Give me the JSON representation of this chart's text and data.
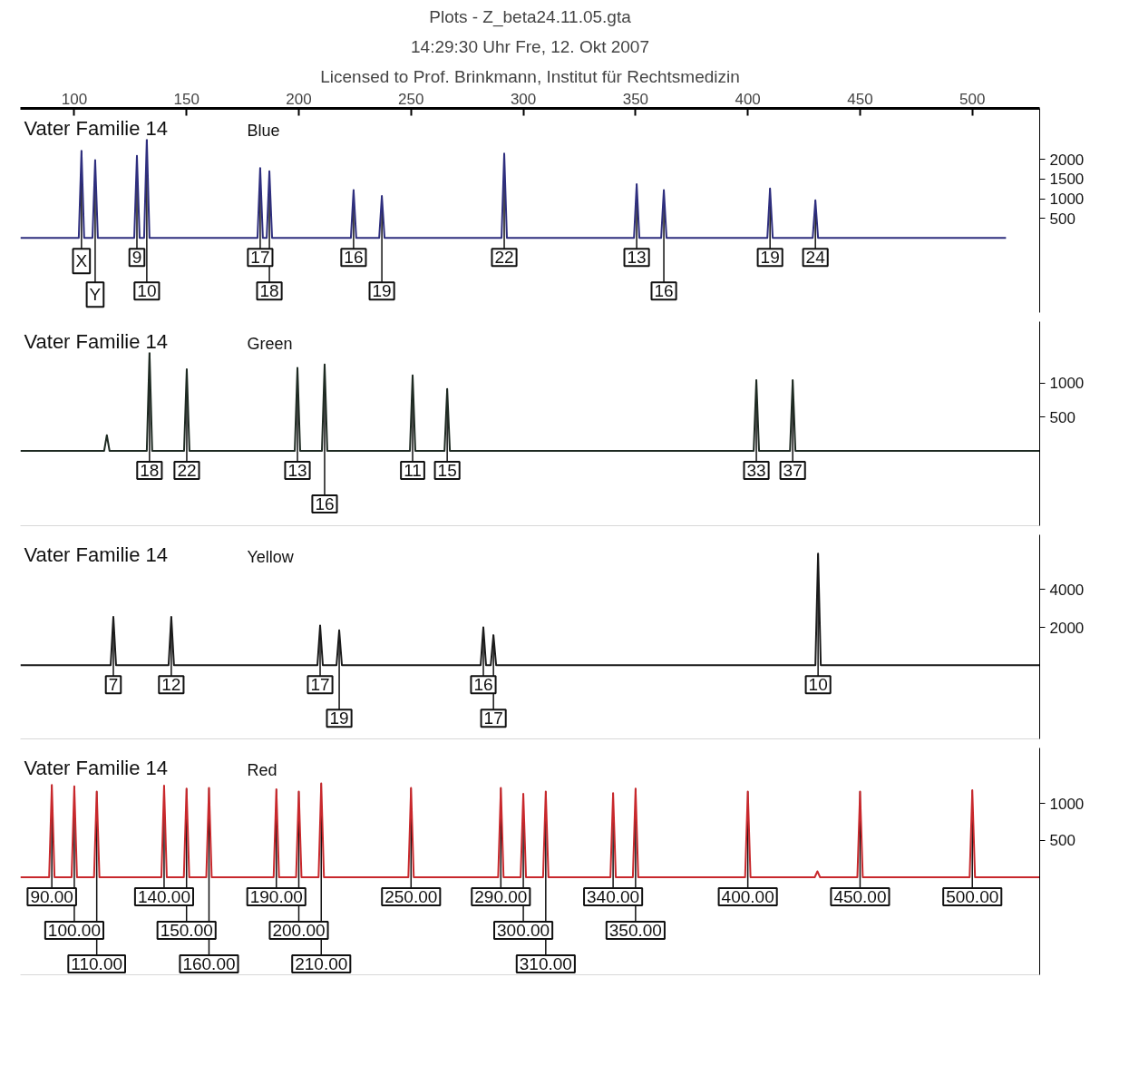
{
  "chart_data": [
    {
      "type": "line",
      "title": "Vater Familie 14",
      "subtitle": "Blue",
      "xlim": [
        76,
        530
      ],
      "xticks": [
        100,
        150,
        200,
        250,
        300,
        350,
        400,
        450,
        500
      ],
      "ylim": [
        -1900,
        3300
      ],
      "yticks": [
        500,
        1000,
        1500,
        2000
      ],
      "grid": false,
      "marker": "none",
      "line_style": "solid",
      "series": [
        {
          "color": "#2e2e7e",
          "x": [
            76,
            102,
            103.2,
            104.4,
            108.1,
            109.3,
            110.5,
            126.7,
            127.9,
            129.1,
            131.1,
            132.3,
            133.5,
            181.6,
            182.8,
            184,
            185.7,
            186.9,
            188.1,
            223.2,
            224.4,
            225.6,
            235.8,
            237,
            238.2,
            290.3,
            291.5,
            292.7,
            349.3,
            350.5,
            351.7,
            361.4,
            362.6,
            363.8,
            408.7,
            409.9,
            411.1,
            428.9,
            430.1,
            431.3,
            515
          ],
          "values": [
            0,
            0,
            2220,
            0,
            0,
            1980,
            0,
            0,
            2090,
            0,
            0,
            2520,
            0,
            0,
            1780,
            0,
            0,
            1700,
            0,
            0,
            1220,
            0,
            0,
            1070,
            0,
            0,
            2150,
            0,
            0,
            1370,
            0,
            0,
            1220,
            0,
            0,
            1260,
            0,
            0,
            960,
            0,
            0
          ]
        }
      ],
      "annotations": [
        "Plots - Z_beta24.11.05.gta",
        "14:29:30 Uhr Fre, 12. Okt 2007",
        "Licensed to Prof. Brinkmann, Institut für Rechtsmedizin",
        {
          "text": "X",
          "x": 103.2,
          "y": 2220
        },
        {
          "text": "Y",
          "x": 109.3,
          "y": 1980
        },
        {
          "text": "9",
          "x": 127.9,
          "y": 2090
        },
        {
          "text": "10",
          "x": 132.3,
          "y": 2520
        },
        {
          "text": "17",
          "x": 182.8,
          "y": 1780
        },
        {
          "text": "18",
          "x": 186.9,
          "y": 1700
        },
        {
          "text": "16",
          "x": 224.4,
          "y": 1220
        },
        {
          "text": "19",
          "x": 237,
          "y": 1070
        },
        {
          "text": "22",
          "x": 291.5,
          "y": 2150
        },
        {
          "text": "13",
          "x": 350.5,
          "y": 1370
        },
        {
          "text": "16",
          "x": 362.6,
          "y": 1220
        },
        {
          "text": "19",
          "x": 409.9,
          "y": 1260
        },
        {
          "text": "24",
          "x": 430.1,
          "y": 960
        }
      ]
    },
    {
      "type": "line",
      "title": "Vater Familie 14",
      "subtitle": "Green",
      "xlim": [
        76,
        530
      ],
      "ylim": [
        -1100,
        1900
      ],
      "yticks": [
        500,
        1000
      ],
      "tick_labels": "y",
      "grid": false,
      "marker": "none",
      "line_style": "solid",
      "series": [
        {
          "color": "#1e2a22",
          "x": [
            76,
            113.3,
            114.5,
            115.7,
            132.3,
            133.5,
            134.7,
            148.9,
            150.1,
            151.3,
            198.2,
            199.4,
            200.6,
            210.3,
            211.5,
            212.7,
            249.5,
            250.7,
            251.9,
            264.9,
            266.1,
            267.3,
            402.6,
            403.8,
            405,
            418.8,
            420,
            421.2,
            530
          ],
          "values": [
            0,
            0,
            230,
            0,
            0,
            1450,
            0,
            0,
            1200,
            0,
            0,
            1220,
            0,
            0,
            1270,
            0,
            0,
            1110,
            0,
            0,
            910,
            0,
            0,
            1040,
            0,
            0,
            1040,
            0,
            0
          ]
        }
      ],
      "annotations": [
        {
          "text": "18",
          "x": 133.5,
          "y": 1450
        },
        {
          "text": "22",
          "x": 150.1,
          "y": 1200
        },
        {
          "text": "13",
          "x": 199.4,
          "y": 1220
        },
        {
          "text": "16",
          "x": 211.5,
          "y": 1270
        },
        {
          "text": "11",
          "x": 250.7,
          "y": 1110
        },
        {
          "text": "15",
          "x": 266.1,
          "y": 910
        },
        {
          "text": "33",
          "x": 403.8,
          "y": 1040
        },
        {
          "text": "37",
          "x": 420,
          "y": 1040
        }
      ]
    },
    {
      "type": "line",
      "title": "Vater Familie 14",
      "subtitle": "Yellow",
      "xlim": [
        76,
        530
      ],
      "ylim": [
        -3900,
        6900
      ],
      "yticks": [
        2000,
        4000
      ],
      "tick_labels": "y",
      "grid": false,
      "marker": "none",
      "line_style": "solid",
      "series": [
        {
          "color": "#1a1a1a",
          "x": [
            76,
            116.2,
            117.4,
            118.6,
            142,
            143.2,
            144.4,
            208.3,
            209.5,
            210.7,
            216.8,
            218,
            219.2,
            281,
            282.2,
            283.4,
            285.5,
            286.7,
            287.9,
            430.1,
            431.3,
            432.5,
            530
          ],
          "values": [
            0,
            0,
            2560,
            0,
            0,
            2560,
            0,
            0,
            2100,
            0,
            0,
            1850,
            0,
            0,
            2000,
            0,
            0,
            1590,
            0,
            0,
            5900,
            0,
            0
          ]
        }
      ],
      "annotations": [
        {
          "text": "7",
          "x": 117.4,
          "y": 2560
        },
        {
          "text": "12",
          "x": 143.2,
          "y": 2560
        },
        {
          "text": "17",
          "x": 209.5,
          "y": 2100
        },
        {
          "text": "19",
          "x": 218,
          "y": 1850
        },
        {
          "text": "16",
          "x": 282.2,
          "y": 2000
        },
        {
          "text": "17",
          "x": 286.7,
          "y": 1590
        },
        {
          "text": "10",
          "x": 431.3,
          "y": 5900
        }
      ]
    },
    {
      "type": "line",
      "title": "Vater Familie 14",
      "subtitle": "Red",
      "xlim": [
        76,
        530
      ],
      "ylim": [
        -1320,
        1750
      ],
      "yticks": [
        500,
        1000
      ],
      "tick_labels": "y",
      "grid": false,
      "marker": "none",
      "line_style": "solid",
      "series": [
        {
          "color": "#c8282c",
          "x": [
            76,
            88.8,
            90,
            91.2,
            98.8,
            100,
            101.2,
            108.8,
            110,
            111.2,
            138.8,
            140,
            141.2,
            148.8,
            150,
            151.2,
            158.8,
            160,
            161.2,
            188.8,
            190,
            191.2,
            198.8,
            200,
            201.2,
            208.8,
            210,
            211.2,
            248.8,
            250,
            251.2,
            288.8,
            290,
            291.2,
            298.8,
            300,
            301.2,
            308.8,
            310,
            311.2,
            338.8,
            340,
            341.2,
            348.8,
            350,
            351.2,
            398.8,
            400,
            401.2,
            429.8,
            431,
            432.2,
            448.8,
            450,
            451.2,
            498.8,
            500,
            501.2,
            530
          ],
          "values": [
            0,
            0,
            1250,
            0,
            0,
            1230,
            0,
            0,
            1160,
            0,
            0,
            1240,
            0,
            0,
            1200,
            0,
            0,
            1210,
            0,
            0,
            1190,
            0,
            0,
            1160,
            0,
            0,
            1270,
            0,
            0,
            1210,
            0,
            0,
            1210,
            0,
            0,
            1130,
            0,
            0,
            1160,
            0,
            0,
            1140,
            0,
            0,
            1200,
            0,
            0,
            1160,
            0,
            0,
            80,
            0,
            0,
            1160,
            0,
            0,
            1180,
            0,
            0
          ]
        }
      ],
      "annotations": [
        {
          "text": "90.00",
          "x": 90,
          "y": 1250
        },
        {
          "text": "100.00",
          "x": 100,
          "y": 1230
        },
        {
          "text": "110.00",
          "x": 110,
          "y": 1160
        },
        {
          "text": "140.00",
          "x": 140,
          "y": 1240
        },
        {
          "text": "150.00",
          "x": 150,
          "y": 1200
        },
        {
          "text": "160.00",
          "x": 160,
          "y": 1210
        },
        {
          "text": "190.00",
          "x": 190,
          "y": 1190
        },
        {
          "text": "200.00",
          "x": 200,
          "y": 1160
        },
        {
          "text": "210.00",
          "x": 210,
          "y": 1270
        },
        {
          "text": "250.00",
          "x": 250,
          "y": 1210
        },
        {
          "text": "290.00",
          "x": 290,
          "y": 1210
        },
        {
          "text": "300.00",
          "x": 300,
          "y": 1130
        },
        {
          "text": "310.00",
          "x": 310,
          "y": 1160
        },
        {
          "text": "340.00",
          "x": 340,
          "y": 1140
        },
        {
          "text": "350.00",
          "x": 350,
          "y": 1200
        },
        {
          "text": "400.00",
          "x": 400,
          "y": 1160
        },
        {
          "text": "450.00",
          "x": 450,
          "y": 1160
        },
        {
          "text": "500.00",
          "x": 500,
          "y": 1180
        }
      ]
    }
  ]
}
